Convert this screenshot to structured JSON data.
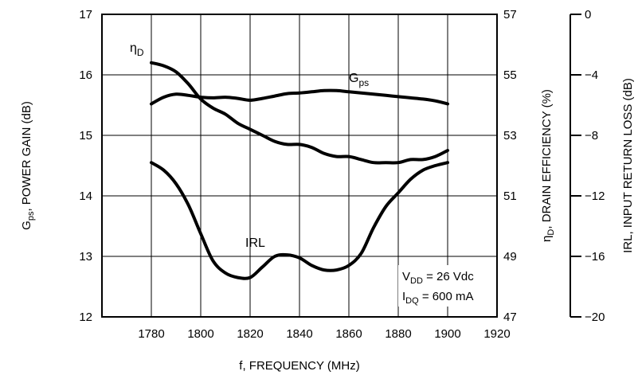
{
  "chart_data": {
    "type": "line",
    "xlabel": "f, FREQUENCY (MHz)",
    "xlim": [
      1760,
      1920
    ],
    "x_ticks": [
      "1780",
      "1800",
      "1820",
      "1840",
      "1860",
      "1880",
      "1900",
      "1920"
    ],
    "axes": {
      "left": {
        "label_main": "G",
        "label_sub": "ps",
        "label_rest": ", POWER GAIN (dB)",
        "range": [
          12,
          17
        ],
        "ticks": [
          "12",
          "13",
          "14",
          "15",
          "16",
          "17"
        ]
      },
      "right1": {
        "label_main": "η",
        "label_sub": "D",
        "label_rest": ", DRAIN EFFICIENCY (%)",
        "range": [
          47,
          57
        ],
        "ticks": [
          "47",
          "49",
          "51",
          "53",
          "55",
          "57"
        ]
      },
      "right2": {
        "label": "IRL, INPUT RETURN LOSS (dB)",
        "range": [
          -20,
          0
        ],
        "ticks": [
          "−20",
          "−16",
          "−12",
          "−8",
          "−4",
          "0"
        ]
      }
    },
    "grid": true,
    "series": [
      {
        "name_main": "G",
        "name_sub": "ps",
        "axis": "left",
        "x": [
          1780,
          1785,
          1790,
          1795,
          1800,
          1805,
          1810,
          1815,
          1820,
          1825,
          1830,
          1835,
          1840,
          1845,
          1850,
          1855,
          1860,
          1865,
          1870,
          1875,
          1880,
          1885,
          1890,
          1895,
          1900
        ],
        "y": [
          15.52,
          15.63,
          15.68,
          15.66,
          15.63,
          15.62,
          15.63,
          15.61,
          15.58,
          15.61,
          15.65,
          15.69,
          15.7,
          15.72,
          15.74,
          15.74,
          15.72,
          15.7,
          15.68,
          15.66,
          15.64,
          15.62,
          15.6,
          15.57,
          15.52
        ]
      },
      {
        "name_main": "η",
        "name_sub": "D",
        "axis": "right1",
        "x": [
          1780,
          1785,
          1790,
          1795,
          1800,
          1805,
          1810,
          1815,
          1820,
          1825,
          1830,
          1835,
          1840,
          1845,
          1850,
          1855,
          1860,
          1865,
          1870,
          1875,
          1880,
          1885,
          1890,
          1895,
          1900
        ],
        "y": [
          55.4,
          55.3,
          55.1,
          54.7,
          54.2,
          53.9,
          53.7,
          53.4,
          53.2,
          53.0,
          52.8,
          52.7,
          52.7,
          52.6,
          52.4,
          52.3,
          52.3,
          52.2,
          52.1,
          52.1,
          52.1,
          52.2,
          52.2,
          52.3,
          52.5
        ]
      },
      {
        "name": "IRL",
        "axis": "right2",
        "x": [
          1780,
          1785,
          1790,
          1795,
          1800,
          1805,
          1810,
          1815,
          1820,
          1825,
          1830,
          1835,
          1840,
          1845,
          1850,
          1855,
          1860,
          1865,
          1870,
          1875,
          1880,
          1885,
          1890,
          1895,
          1900
        ],
        "y": [
          -9.8,
          -10.3,
          -11.2,
          -12.6,
          -14.5,
          -16.3,
          -17.1,
          -17.4,
          -17.4,
          -16.7,
          -16.0,
          -15.9,
          -16.1,
          -16.6,
          -16.9,
          -16.9,
          -16.6,
          -15.8,
          -14.1,
          -12.7,
          -11.8,
          -10.9,
          -10.3,
          -10.0,
          -9.8
        ]
      }
    ],
    "annotation": {
      "line1_main": "V",
      "line1_sub": "DD",
      "line1_rest": " = 26 Vdc",
      "line2_main": "I",
      "line2_sub": "DQ",
      "line2_rest": " = 600 mA"
    }
  }
}
